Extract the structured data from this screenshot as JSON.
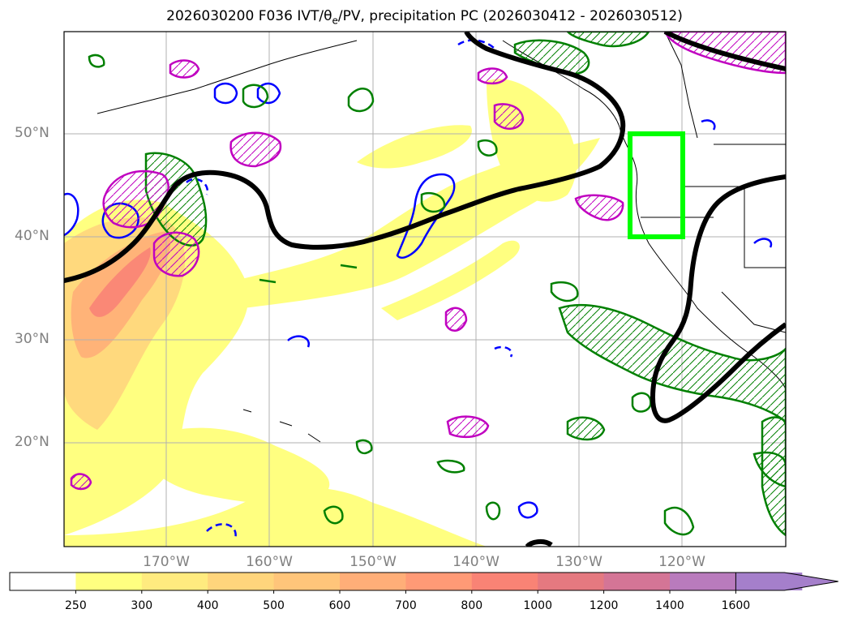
{
  "title": {
    "prefix": "2026030200 F036 IVT/θ",
    "subscript": "e",
    "suffix": "/PV, precipitation PC (2026030412 - 2026030512)"
  },
  "map": {
    "latitude_labels": [
      "50°N",
      "40°N",
      "30°N",
      "20°N"
    ],
    "longitude_labels": [
      "170°W",
      "160°W",
      "150°W",
      "140°W",
      "130°W",
      "120°W"
    ],
    "highlight_box": {
      "color": "#00ff00",
      "lat_range": [
        40,
        50
      ],
      "lon_range": [
        -125,
        -120
      ]
    }
  },
  "colorbar": {
    "ticks": [
      "250",
      "300",
      "400",
      "500",
      "600",
      "700",
      "800",
      "1000",
      "1200",
      "1400",
      "1600"
    ],
    "colors": [
      "#ffffff",
      "#ffff80",
      "#ffeb7f",
      "#ffd57c",
      "#ffc57a",
      "#ffae78",
      "#ff9a76",
      "#f98375",
      "#e57980",
      "#d47596",
      "#b97bbd",
      "#a57fcb"
    ],
    "extend": "max"
  },
  "legend_colors": {
    "pv_contour": "#000000",
    "precip_pos": "#008000",
    "precip_neg_blue": "#0000ff",
    "precip_neg_magenta": "#c000c0"
  }
}
